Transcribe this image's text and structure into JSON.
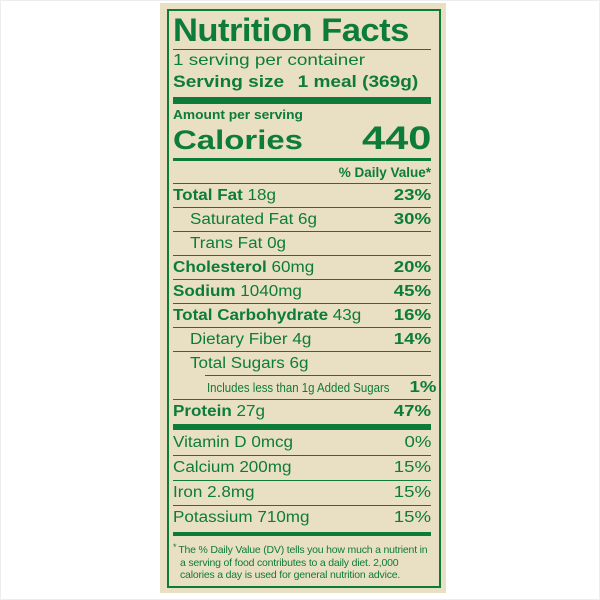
{
  "colors": {
    "green": "#0d7b3a",
    "background": "#e9dfc3",
    "page": "#ffffff"
  },
  "label": {
    "title": "Nutrition Facts",
    "servings_per_container": "1 serving per container",
    "serving_size_label": "Serving size",
    "serving_size_value": "1 meal (369g)",
    "amount_per_serving": "Amount per serving",
    "calories_label": "Calories",
    "calories_value": "440",
    "daily_value_header": "% Daily Value*",
    "nutrients": [
      {
        "name": "Total Fat",
        "amount": "18g",
        "dv": "23%",
        "bold": true,
        "indent": 0
      },
      {
        "name": "Saturated Fat",
        "amount": "6g",
        "dv": "30%",
        "bold": false,
        "indent": 1
      },
      {
        "name": "Trans Fat",
        "amount": "0g",
        "dv": "",
        "bold": false,
        "indent": 1
      },
      {
        "name": "Cholesterol",
        "amount": "60mg",
        "dv": "20%",
        "bold": true,
        "indent": 0
      },
      {
        "name": "Sodium",
        "amount": "1040mg",
        "dv": "45%",
        "bold": true,
        "indent": 0
      },
      {
        "name": "Total Carbohydrate",
        "amount": "43g",
        "dv": "16%",
        "bold": true,
        "indent": 0
      },
      {
        "name": "Dietary Fiber",
        "amount": "4g",
        "dv": "14%",
        "bold": false,
        "indent": 1
      },
      {
        "name": "Total Sugars",
        "amount": "6g",
        "dv": "",
        "bold": false,
        "indent": 1
      },
      {
        "name": "Includes less than 1g Added Sugars",
        "amount": "",
        "dv": "1%",
        "bold": false,
        "indent": 2,
        "condensed": true,
        "divider_indented": true
      },
      {
        "name": "Protein",
        "amount": "27g",
        "dv": "47%",
        "bold": true,
        "indent": 0
      }
    ],
    "vitamins": [
      {
        "name": "Vitamin D",
        "amount": "0mcg",
        "dv": "0%"
      },
      {
        "name": "Calcium",
        "amount": "200mg",
        "dv": "15%"
      },
      {
        "name": "Iron",
        "amount": "2.8mg",
        "dv": "15%"
      },
      {
        "name": "Potassium",
        "amount": "710mg",
        "dv": "15%"
      }
    ],
    "footnote_marker": "*",
    "footnote": "The % Daily Value (DV) tells you how much a nutrient in a serving of food contributes to a daily diet. 2,000 calories a day is used for general nutrition advice."
  }
}
